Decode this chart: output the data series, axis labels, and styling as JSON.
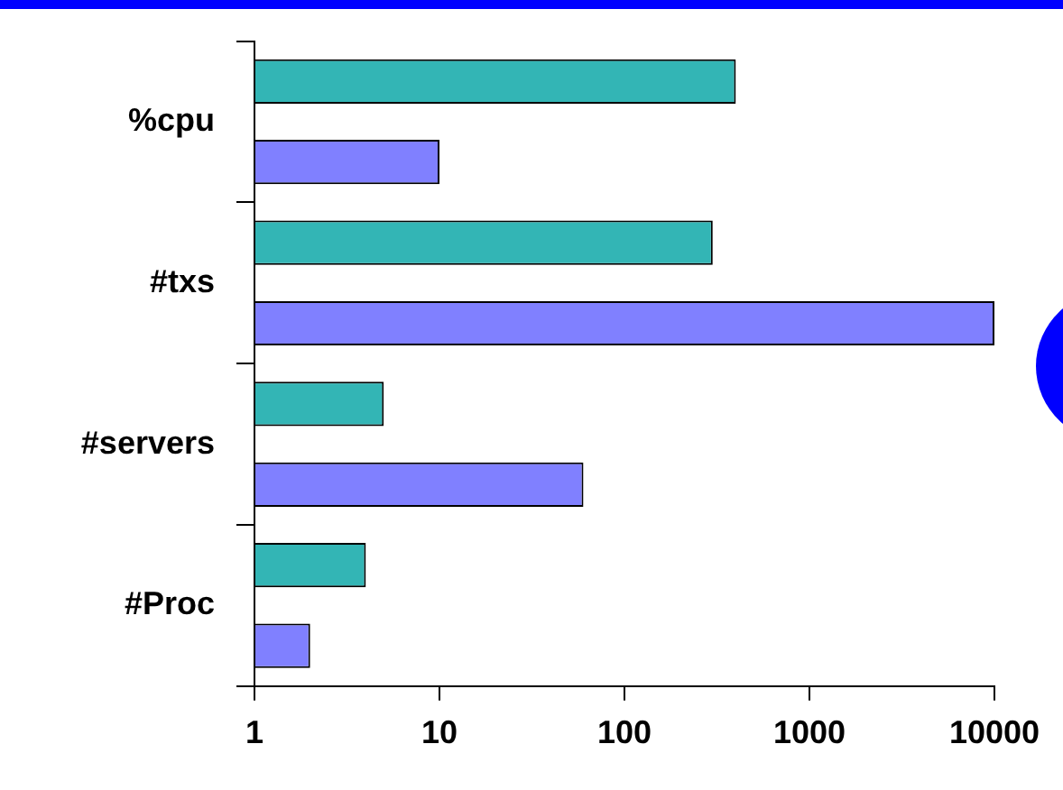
{
  "chart_data": {
    "type": "bar",
    "orientation": "horizontal",
    "categories": [
      "%cpu",
      "#txs",
      "#servers",
      "#Proc"
    ],
    "series": [
      {
        "color": "#33b5b5",
        "values": [
          400,
          300,
          5,
          4
        ]
      },
      {
        "color": "#8080ff",
        "values": [
          10,
          10000,
          60,
          2
        ]
      }
    ],
    "log": "x",
    "xlim": [
      1,
      10000
    ],
    "xticks": [
      1,
      10,
      100,
      1000,
      10000
    ],
    "grid": false,
    "legend": false
  }
}
